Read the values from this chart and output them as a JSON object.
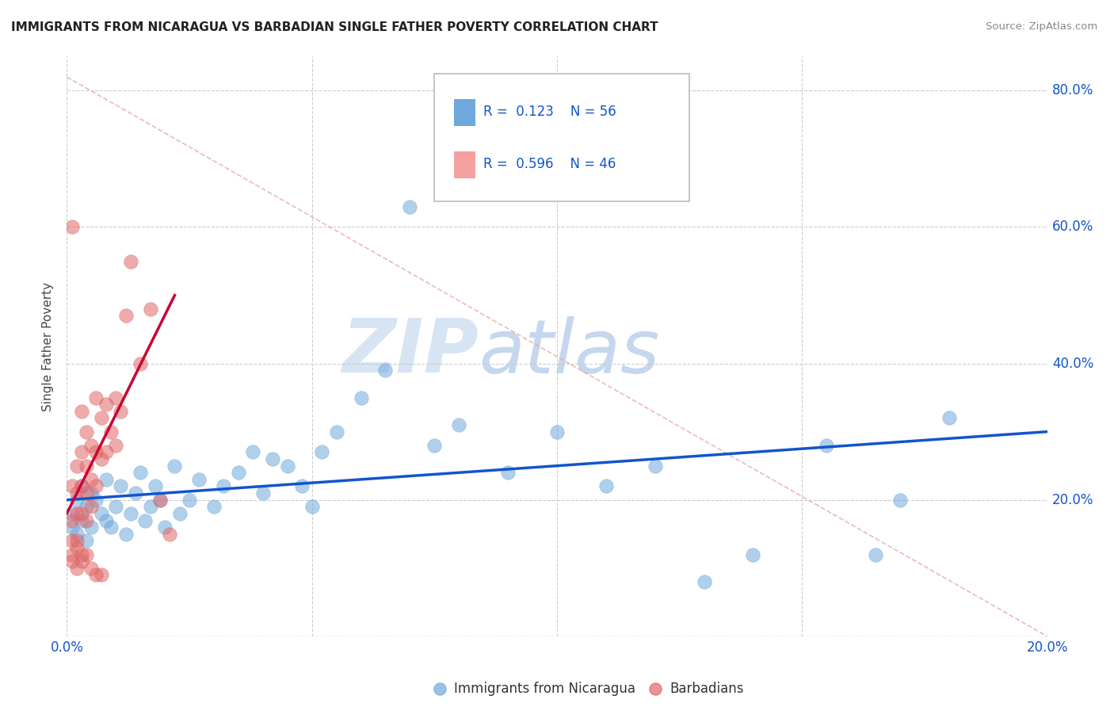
{
  "title": "IMMIGRANTS FROM NICARAGUA VS BARBADIAN SINGLE FATHER POVERTY CORRELATION CHART",
  "source": "Source: ZipAtlas.com",
  "ylabel": "Single Father Poverty",
  "legend_blue_label": "Immigrants from Nicaragua",
  "legend_pink_label": "Barbadians",
  "blue_color": "#6fa8dc",
  "pink_color": "#e06666",
  "blue_line_color": "#1155cc",
  "pink_line_color": "#cc0033",
  "diag_line_color": "#e6b8b7",
  "watermark_zip": "ZIP",
  "watermark_atlas": "atlas",
  "background_color": "#ffffff",
  "grid_color": "#cccccc",
  "xlim": [
    0.0,
    0.2
  ],
  "ylim": [
    0.0,
    0.85
  ],
  "blue_scatter_x": [
    0.001,
    0.001,
    0.002,
    0.002,
    0.003,
    0.003,
    0.004,
    0.004,
    0.005,
    0.005,
    0.006,
    0.007,
    0.008,
    0.008,
    0.009,
    0.01,
    0.011,
    0.012,
    0.013,
    0.014,
    0.015,
    0.016,
    0.017,
    0.018,
    0.019,
    0.02,
    0.022,
    0.023,
    0.025,
    0.027,
    0.03,
    0.032,
    0.035,
    0.038,
    0.04,
    0.042,
    0.045,
    0.048,
    0.05,
    0.052,
    0.055,
    0.06,
    0.065,
    0.07,
    0.075,
    0.08,
    0.09,
    0.1,
    0.11,
    0.12,
    0.14,
    0.155,
    0.17,
    0.18,
    0.165,
    0.13
  ],
  "blue_scatter_y": [
    0.18,
    0.16,
    0.2,
    0.15,
    0.22,
    0.17,
    0.19,
    0.14,
    0.21,
    0.16,
    0.2,
    0.18,
    0.17,
    0.23,
    0.16,
    0.19,
    0.22,
    0.15,
    0.18,
    0.21,
    0.24,
    0.17,
    0.19,
    0.22,
    0.2,
    0.16,
    0.25,
    0.18,
    0.2,
    0.23,
    0.19,
    0.22,
    0.24,
    0.27,
    0.21,
    0.26,
    0.25,
    0.22,
    0.19,
    0.27,
    0.3,
    0.35,
    0.39,
    0.63,
    0.28,
    0.31,
    0.24,
    0.3,
    0.22,
    0.25,
    0.12,
    0.28,
    0.2,
    0.32,
    0.12,
    0.08
  ],
  "pink_scatter_x": [
    0.001,
    0.001,
    0.001,
    0.002,
    0.002,
    0.002,
    0.003,
    0.003,
    0.003,
    0.003,
    0.004,
    0.004,
    0.004,
    0.004,
    0.005,
    0.005,
    0.005,
    0.006,
    0.006,
    0.006,
    0.007,
    0.007,
    0.008,
    0.008,
    0.009,
    0.01,
    0.01,
    0.011,
    0.012,
    0.013,
    0.015,
    0.017,
    0.019,
    0.021,
    0.001,
    0.002,
    0.001,
    0.003,
    0.002,
    0.001,
    0.002,
    0.003,
    0.004,
    0.005,
    0.006,
    0.007
  ],
  "pink_scatter_y": [
    0.6,
    0.22,
    0.17,
    0.25,
    0.21,
    0.18,
    0.33,
    0.27,
    0.22,
    0.18,
    0.3,
    0.25,
    0.21,
    0.17,
    0.28,
    0.23,
    0.19,
    0.35,
    0.27,
    0.22,
    0.32,
    0.26,
    0.34,
    0.27,
    0.3,
    0.35,
    0.28,
    0.33,
    0.47,
    0.55,
    0.4,
    0.48,
    0.2,
    0.15,
    0.14,
    0.14,
    0.12,
    0.12,
    0.13,
    0.11,
    0.1,
    0.11,
    0.12,
    0.1,
    0.09,
    0.09
  ],
  "r_blue": "0.123",
  "n_blue": "56",
  "r_pink": "0.596",
  "n_pink": "46"
}
